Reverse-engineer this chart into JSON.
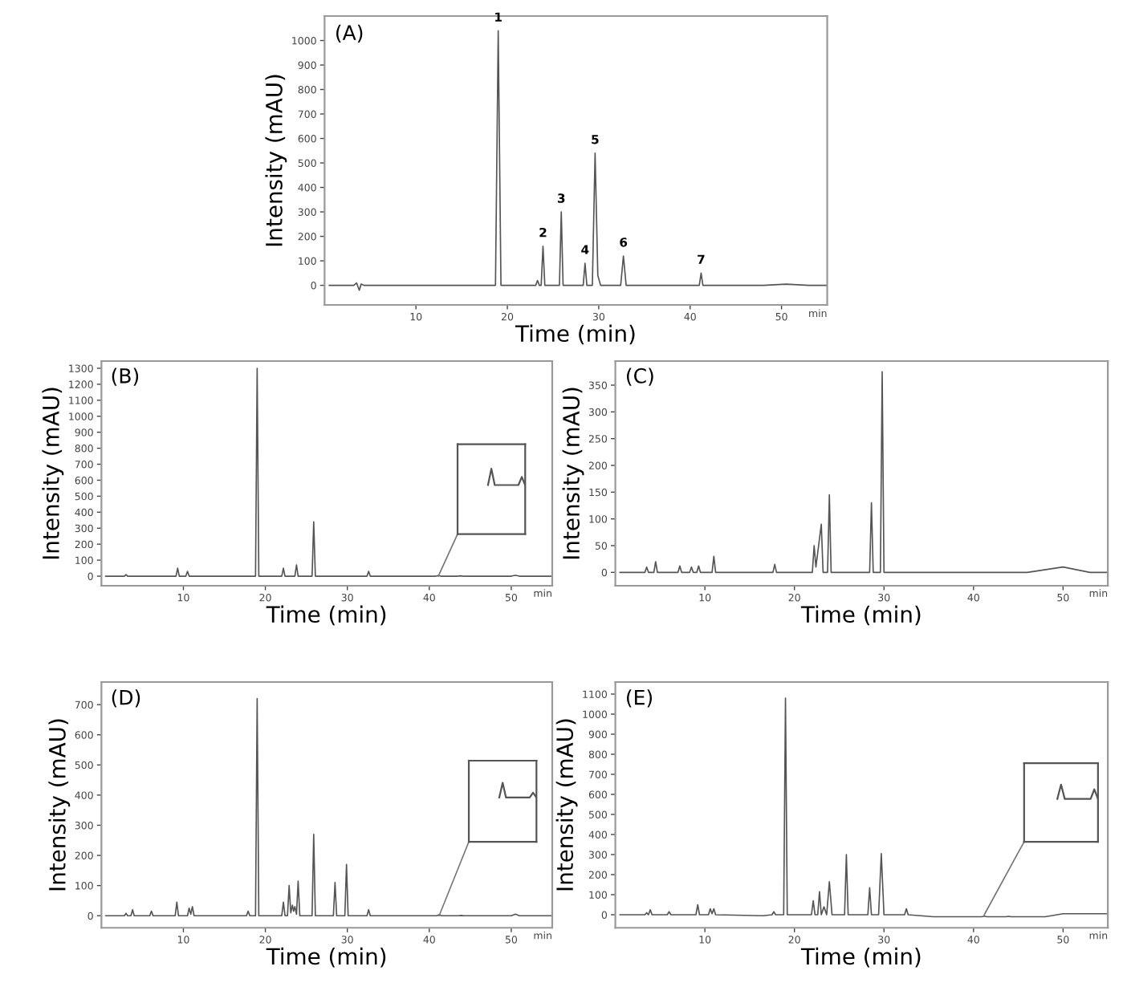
{
  "chart_data": [
    {
      "type": "line",
      "title": "(A)",
      "xlabel": "Time (min)",
      "ylabel": "Intensity (mAU)",
      "color": "#555555",
      "grid": false,
      "legend": false,
      "x": [
        0.5,
        3.2,
        3.5,
        3.8,
        4.0,
        4.3,
        18.7,
        19.0,
        19.3,
        23.1,
        23.3,
        23.5,
        23.7,
        23.9,
        24.1,
        25.7,
        25.9,
        26.1,
        28.3,
        28.5,
        28.7,
        29.3,
        29.6,
        29.9,
        30.2,
        32.4,
        32.7,
        33.0,
        41.0,
        41.2,
        41.4,
        48,
        50.5,
        53,
        55
      ],
      "values": [
        0,
        0,
        10,
        -20,
        5,
        0,
        0,
        1040,
        0,
        0,
        20,
        0,
        0,
        160,
        0,
        0,
        300,
        0,
        0,
        90,
        0,
        0,
        540,
        40,
        0,
        0,
        120,
        0,
        0,
        50,
        0,
        0,
        5,
        0,
        0
      ],
      "xlim": [
        0,
        55
      ],
      "xticks": [
        10,
        20,
        30,
        40,
        50
      ],
      "ylim": [
        -80,
        1100
      ],
      "yticks": [
        0,
        100,
        200,
        300,
        400,
        500,
        600,
        700,
        800,
        900,
        1000
      ],
      "annotations": [
        {
          "text": "1",
          "x": 19.0,
          "y": 1040
        },
        {
          "text": "2",
          "x": 23.9,
          "y": 160
        },
        {
          "text": "3",
          "x": 25.9,
          "y": 300
        },
        {
          "text": "4",
          "x": 28.5,
          "y": 90
        },
        {
          "text": "5",
          "x": 29.6,
          "y": 540
        },
        {
          "text": "6",
          "x": 32.7,
          "y": 120
        },
        {
          "text": "7",
          "x": 41.2,
          "y": 50
        },
        "min"
      ]
    },
    {
      "type": "line",
      "title": "(B)",
      "xlabel": "Time (min)",
      "ylabel": "Intensity (mAU)",
      "color": "#555555",
      "grid": false,
      "legend": false,
      "x": [
        0.5,
        2.8,
        3.0,
        3.2,
        9.1,
        9.3,
        9.5,
        10.3,
        10.5,
        10.7,
        18.8,
        19.0,
        19.2,
        22.0,
        22.2,
        22.4,
        23.6,
        23.8,
        24.0,
        25.7,
        25.9,
        26.1,
        32.4,
        32.6,
        32.8,
        40.8,
        41.1,
        41.4,
        43.5,
        43.8,
        44.1,
        50.0,
        50.5,
        51.0,
        55
      ],
      "values": [
        0,
        0,
        10,
        0,
        0,
        50,
        0,
        0,
        30,
        0,
        0,
        1300,
        0,
        0,
        50,
        0,
        0,
        70,
        0,
        0,
        340,
        0,
        0,
        30,
        0,
        0,
        4,
        0,
        0,
        2,
        0,
        0,
        5,
        0,
        0
      ],
      "xlim": [
        0,
        55
      ],
      "xticks": [
        10,
        20,
        30,
        40,
        50
      ],
      "ylim": [
        -60,
        1345
      ],
      "yticks": [
        0,
        100,
        200,
        300,
        400,
        500,
        600,
        700,
        800,
        900,
        1000,
        1100,
        1200,
        1300
      ],
      "annotations": [
        "min"
      ]
    },
    {
      "type": "line",
      "title": "(C)",
      "xlabel": "Time (min)",
      "ylabel": "Intensity (mAU)",
      "color": "#555555",
      "grid": false,
      "legend": false,
      "x": [
        0.5,
        3.3,
        3.5,
        3.7,
        4.3,
        4.5,
        4.7,
        7.0,
        7.2,
        7.4,
        8.3,
        8.5,
        8.7,
        9.1,
        9.3,
        9.5,
        10.8,
        11.0,
        11.2,
        17.6,
        17.8,
        18.0,
        22.0,
        22.2,
        22.4,
        22.7,
        23.0,
        23.2,
        23.7,
        23.9,
        24.1,
        28.4,
        28.6,
        28.8,
        29.6,
        29.8,
        30.0,
        46,
        50,
        53,
        55
      ],
      "values": [
        0,
        0,
        10,
        0,
        0,
        20,
        0,
        0,
        12,
        0,
        0,
        10,
        0,
        0,
        12,
        0,
        0,
        30,
        0,
        0,
        15,
        0,
        0,
        50,
        10,
        50,
        90,
        0,
        0,
        145,
        0,
        0,
        130,
        0,
        0,
        375,
        0,
        0,
        10,
        0,
        0
      ],
      "xlim": [
        0,
        55
      ],
      "xticks": [
        10,
        20,
        30,
        40,
        50
      ],
      "ylim": [
        -25,
        395
      ],
      "yticks": [
        0,
        50,
        100,
        150,
        200,
        250,
        300,
        350
      ],
      "annotations": [
        "min"
      ]
    },
    {
      "type": "line",
      "title": "(D)",
      "xlabel": "Time (min)",
      "ylabel": "Intensity (mAU)",
      "color": "#555555",
      "grid": false,
      "legend": false,
      "x": [
        0.5,
        2.8,
        3.0,
        3.2,
        3.6,
        3.8,
        4.0,
        5.9,
        6.1,
        6.3,
        9.0,
        9.2,
        9.4,
        10.5,
        10.7,
        10.9,
        11.1,
        11.3,
        17.7,
        17.9,
        18.1,
        18.8,
        19.0,
        19.2,
        22.0,
        22.2,
        22.4,
        22.7,
        22.9,
        23.1,
        23.3,
        23.45,
        23.6,
        23.8,
        24.0,
        24.2,
        25.7,
        25.9,
        26.1,
        28.3,
        28.5,
        28.7,
        29.7,
        29.9,
        30.1,
        32.4,
        32.6,
        32.8,
        40.9,
        41.2,
        41.5,
        43.6,
        43.9,
        44.2,
        50.0,
        50.5,
        51.0,
        55
      ],
      "values": [
        0,
        0,
        8,
        0,
        0,
        20,
        0,
        0,
        15,
        0,
        0,
        45,
        0,
        0,
        25,
        5,
        30,
        0,
        0,
        15,
        0,
        0,
        720,
        0,
        0,
        45,
        0,
        0,
        100,
        10,
        35,
        15,
        30,
        5,
        115,
        0,
        0,
        270,
        0,
        0,
        110,
        0,
        0,
        170,
        0,
        0,
        20,
        0,
        0,
        3,
        0,
        0,
        1,
        0,
        0,
        5,
        0,
        0
      ],
      "xlim": [
        0,
        55
      ],
      "xticks": [
        10,
        20,
        30,
        40,
        50
      ],
      "ylim": [
        -40,
        775
      ],
      "yticks": [
        0,
        100,
        200,
        300,
        400,
        500,
        600,
        700
      ],
      "annotations": [
        "min"
      ]
    },
    {
      "type": "line",
      "title": "(E)",
      "xlabel": "Time (min)",
      "ylabel": "Intensity (mAU)",
      "color": "#555555",
      "grid": false,
      "legend": false,
      "x": [
        0.5,
        3.3,
        3.5,
        3.7,
        3.9,
        4.1,
        5.8,
        6.0,
        6.2,
        9.0,
        9.2,
        9.4,
        10.4,
        10.6,
        10.8,
        11.0,
        11.2,
        16.5,
        17.5,
        17.7,
        17.9,
        18.8,
        19.0,
        19.2,
        21.9,
        22.1,
        22.3,
        22.6,
        22.8,
        23.0,
        23.3,
        23.6,
        23.9,
        24.2,
        25.6,
        25.8,
        26.0,
        28.2,
        28.4,
        28.6,
        29.4,
        29.7,
        30.0,
        32.3,
        32.5,
        32.7,
        35.5,
        40.9,
        41.2,
        41.5,
        43.6,
        43.9,
        44.2,
        48,
        50,
        55
      ],
      "values": [
        0,
        0,
        10,
        0,
        25,
        0,
        0,
        15,
        0,
        0,
        50,
        0,
        0,
        30,
        5,
        30,
        0,
        -5,
        0,
        15,
        0,
        0,
        1080,
        0,
        0,
        70,
        0,
        0,
        115,
        0,
        40,
        0,
        165,
        0,
        0,
        300,
        0,
        0,
        135,
        0,
        0,
        305,
        0,
        0,
        30,
        0,
        -10,
        -10,
        -7,
        -10,
        -10,
        -8,
        -10,
        -10,
        5,
        5
      ],
      "xlim": [
        0,
        55
      ],
      "xticks": [
        10,
        20,
        30,
        40,
        50
      ],
      "ylim": [
        -65,
        1160
      ],
      "yticks": [
        0,
        100,
        200,
        300,
        400,
        500,
        600,
        700,
        800,
        900,
        1000,
        1100
      ],
      "annotations": [
        "min"
      ]
    }
  ]
}
